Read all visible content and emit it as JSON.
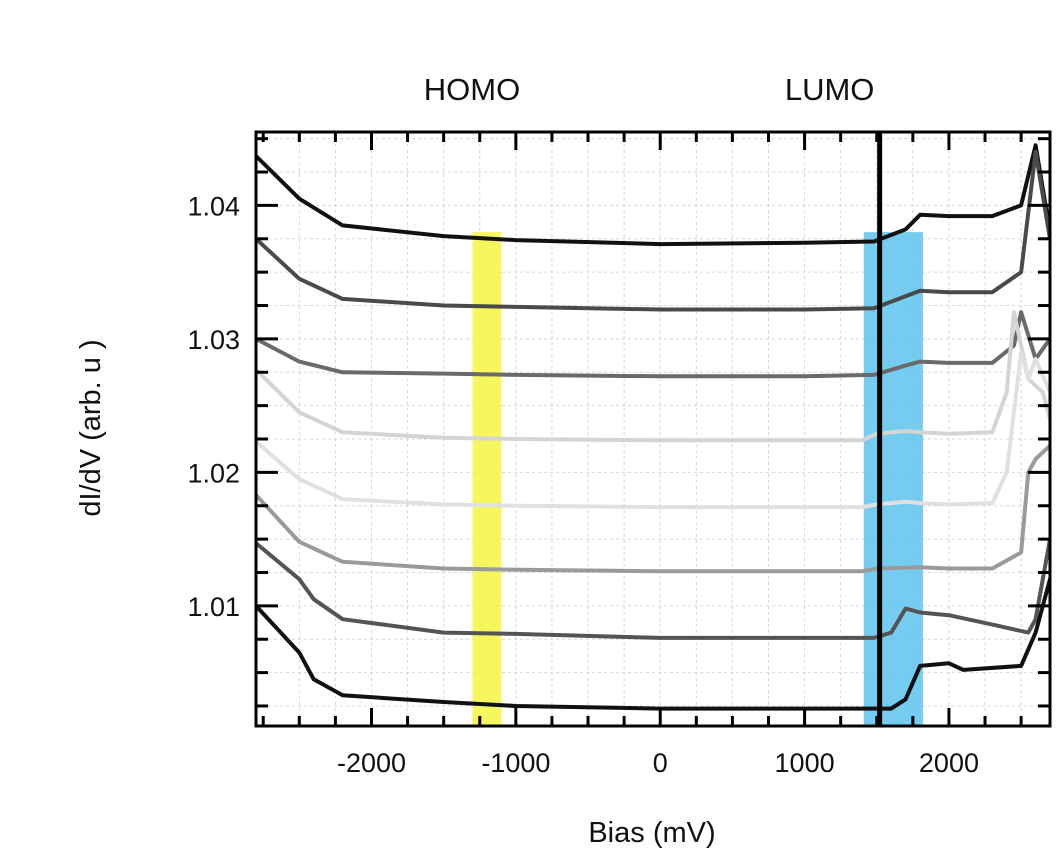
{
  "chart_data": {
    "type": "line",
    "title": "",
    "xlabel": "Bias (mV)",
    "ylabel": "dI/dV (arb. u )",
    "xlim": [
      -2800,
      2700
    ],
    "ylim": [
      1.001,
      1.0455
    ],
    "xticks": [
      -2000,
      -1000,
      0,
      1000,
      2000
    ],
    "xtick_labels": [
      "-2000",
      "-1000",
      "0",
      "1000",
      "2000"
    ],
    "yticks": [
      1.01,
      1.02,
      1.03,
      1.04
    ],
    "ytick_labels": [
      "1.01",
      "1.02",
      "1.03",
      "1.04"
    ],
    "grid": true,
    "annotations": [
      {
        "label": "HOMO",
        "x": -1200,
        "band": [
          -1300,
          -1100
        ],
        "color": "#f5f542"
      },
      {
        "label": "LUMO",
        "x": 1520,
        "band": [
          1410,
          1820
        ],
        "color": "#5cc4ee"
      }
    ],
    "vline": {
      "x": 1520,
      "color": "#000000"
    },
    "series": [
      {
        "color": "#111111",
        "x": [
          -2800,
          -2500,
          -2200,
          -1500,
          -1000,
          0,
          1000,
          1480,
          1700,
          1800,
          2000,
          2300,
          2500,
          2600,
          2700
        ],
        "y": [
          1.0437,
          1.0405,
          1.0385,
          1.0377,
          1.0374,
          1.0371,
          1.0372,
          1.0373,
          1.0382,
          1.0393,
          1.0392,
          1.0392,
          1.04,
          1.0445,
          1.038
        ]
      },
      {
        "color": "#4a4a4a",
        "x": [
          -2800,
          -2500,
          -2200,
          -1500,
          -1000,
          0,
          1000,
          1480,
          1700,
          1800,
          2000,
          2300,
          2500,
          2600,
          2700
        ],
        "y": [
          1.0375,
          1.0345,
          1.033,
          1.0325,
          1.0324,
          1.0322,
          1.0322,
          1.0323,
          1.0332,
          1.0336,
          1.0335,
          1.0335,
          1.035,
          1.044,
          1.0375
        ]
      },
      {
        "color": "#6a6a6a",
        "x": [
          -2800,
          -2500,
          -2200,
          -1500,
          -1000,
          0,
          1000,
          1480,
          1700,
          1800,
          2000,
          2300,
          2450,
          2500,
          2600,
          2700
        ],
        "y": [
          1.03,
          1.0283,
          1.0275,
          1.0274,
          1.0273,
          1.0272,
          1.0272,
          1.0273,
          1.028,
          1.0283,
          1.0282,
          1.0282,
          1.0295,
          1.032,
          1.0285,
          1.03
        ]
      },
      {
        "color": "#d4d4d4",
        "x": [
          -2800,
          -2500,
          -2200,
          -1500,
          -1000,
          0,
          1000,
          1400,
          1500,
          1700,
          1800,
          2000,
          2300,
          2400,
          2450,
          2550,
          2650,
          2700
        ],
        "y": [
          1.0277,
          1.0245,
          1.023,
          1.0226,
          1.0225,
          1.0224,
          1.0224,
          1.0224,
          1.0229,
          1.0231,
          1.023,
          1.0229,
          1.023,
          1.026,
          1.032,
          1.027,
          1.026,
          1.024
        ]
      },
      {
        "color": "#e0e0e0",
        "x": [
          -2800,
          -2500,
          -2200,
          -1500,
          -1000,
          0,
          1000,
          1400,
          1500,
          1700,
          1800,
          2000,
          2300,
          2400,
          2500,
          2550,
          2600,
          2700
        ],
        "y": [
          1.0223,
          1.0195,
          1.018,
          1.0176,
          1.0175,
          1.0174,
          1.0174,
          1.0174,
          1.0176,
          1.0178,
          1.0177,
          1.0176,
          1.0177,
          1.02,
          1.029,
          1.027,
          1.0285,
          1.026
        ]
      },
      {
        "color": "#9a9a9a",
        "x": [
          -2800,
          -2500,
          -2200,
          -1500,
          -1000,
          0,
          1000,
          1400,
          1500,
          1800,
          2000,
          2300,
          2500,
          2550,
          2600,
          2700
        ],
        "y": [
          1.0183,
          1.0148,
          1.0133,
          1.0128,
          1.0127,
          1.0126,
          1.0126,
          1.0126,
          1.0128,
          1.0129,
          1.0128,
          1.0128,
          1.014,
          1.02,
          1.021,
          1.022
        ]
      },
      {
        "color": "#545454",
        "x": [
          -2800,
          -2500,
          -2400,
          -2200,
          -1500,
          -1000,
          0,
          1000,
          1480,
          1600,
          1700,
          1800,
          2000,
          2300,
          2550,
          2600,
          2700
        ],
        "y": [
          1.0147,
          1.012,
          1.0105,
          1.009,
          1.008,
          1.0079,
          1.0076,
          1.0076,
          1.0076,
          1.008,
          1.0098,
          1.0095,
          1.0093,
          1.0086,
          1.008,
          1.009,
          1.015
        ]
      },
      {
        "color": "#111111",
        "x": [
          -2800,
          -2500,
          -2400,
          -2200,
          -1500,
          -1000,
          0,
          1000,
          1600,
          1700,
          1800,
          2000,
          2100,
          2500,
          2600,
          2700
        ],
        "y": [
          1.01,
          1.0065,
          1.0045,
          1.0033,
          1.0028,
          1.0025,
          1.0023,
          1.0023,
          1.0023,
          1.003,
          1.0055,
          1.0057,
          1.0052,
          1.0055,
          1.008,
          1.012
        ]
      }
    ]
  }
}
